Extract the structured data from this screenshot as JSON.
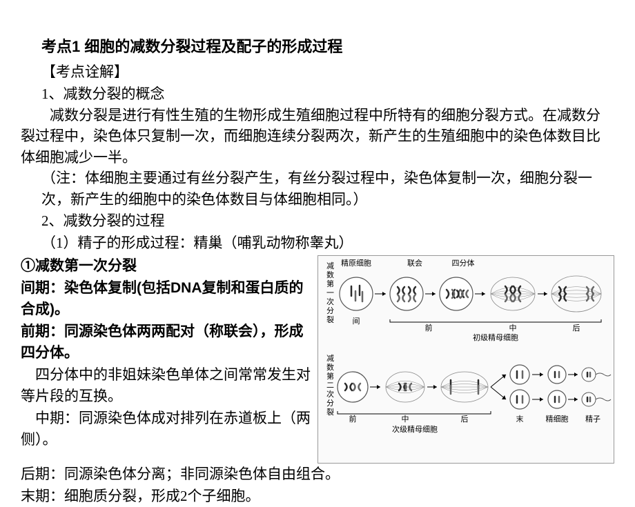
{
  "title": "考点1 细胞的减数分裂过程及配子的形成过程",
  "subtitle": "【考点诠解】",
  "section1_header": "1、减数分裂的概念",
  "section1_body": "减数分裂是进行有性生殖的生物形成生殖细胞过程中所特有的细胞分裂方式。在减数分裂过程中，染色体只复制一次，而细胞连续分裂两次，新产生的生殖细胞中的染色体数目比体细胞减少一半。",
  "note": "（注：体细胞主要通过有丝分裂产生，有丝分裂过程中，染色体复制一次，细胞分裂一次，新产生的细胞中的染色体数目与体细胞相同。）",
  "section2_header": "2、减数分裂的过程",
  "section2_sub1": "（1）精子的形成过程：精巢（哺乳动物称睾丸）",
  "left": {
    "phase1_title": "①减数第一次分裂",
    "interphase": "间期：染色体复制(包括DNA复制和蛋白质的合成)。",
    "prophase": "前期：同源染色体两两配对（称联会），形成四分体。",
    "tetrad_note": "四分体中的非姐妹染色单体之间常常发生对等片段的互换。",
    "metaphase": "中期：同源染色体成对排列在赤道板上（两侧）。",
    "anaphase": "后期：同源染色体分离；非同源染色体自由组合。",
    "telophase": "末期：细胞质分裂，形成2个子细胞。"
  },
  "diagram": {
    "row1_vlabel": "减数第一次分裂",
    "row2_vlabel": "减数第二次分裂",
    "top_labels": [
      "精原细胞",
      "联会",
      "四分体"
    ],
    "row1_bottom_labels": [
      "间",
      "前",
      "中",
      "后"
    ],
    "row1_group_label": "初级精母细胞",
    "row2_bottom_labels": [
      "前",
      "中",
      "后",
      "末"
    ],
    "row2_group_label": "次级精母细胞",
    "row2_end_labels": [
      "精细胞",
      "精子"
    ],
    "colors": {
      "cell_stroke": "#555555",
      "cell_fill": "#ffffff",
      "spindle": "#888888",
      "chrom_dark": "#2b2b2b",
      "chrom_light": "#666666",
      "bracket": "#000000"
    }
  }
}
